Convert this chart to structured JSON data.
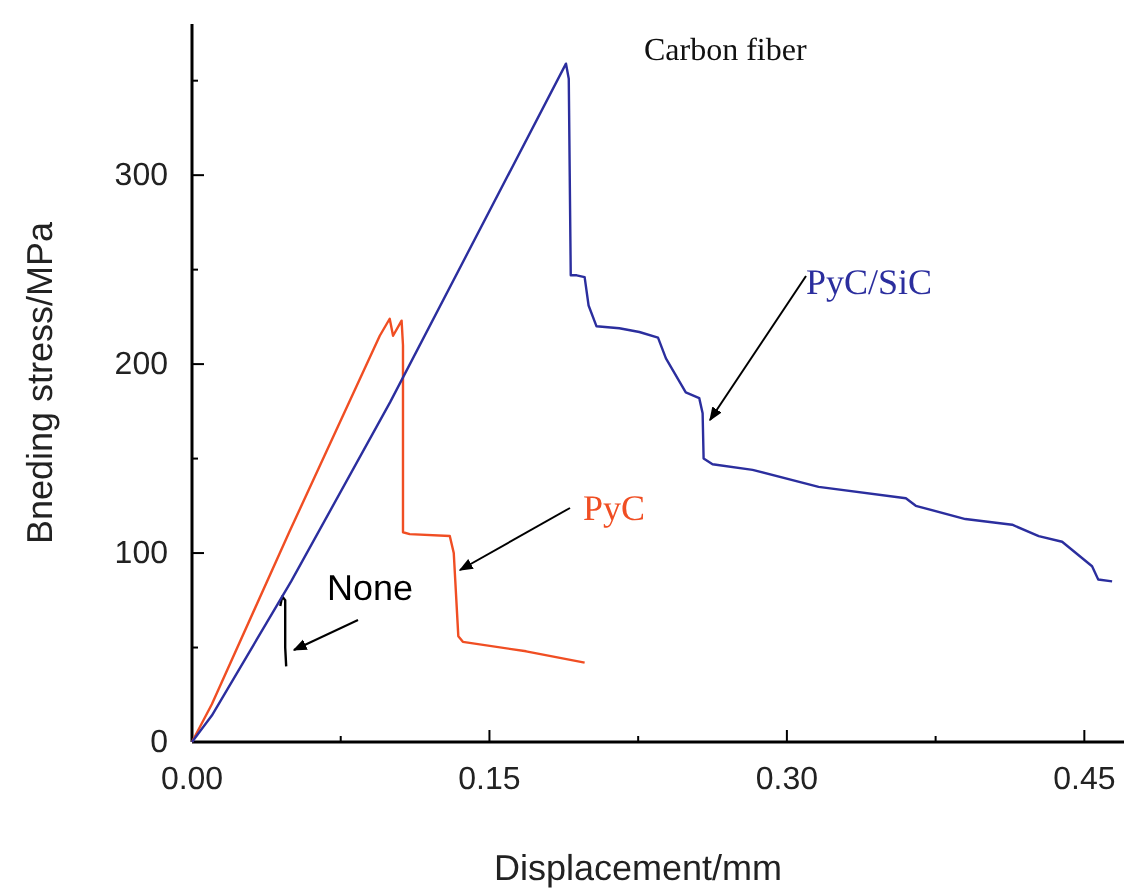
{
  "chart_data": {
    "type": "line",
    "xlabel": "Displacement/mm",
    "ylabel": "Bneding stress/MPa",
    "annotations": [
      "Carbon fiber"
    ],
    "xlim": [
      0,
      0.47
    ],
    "ylim": [
      0,
      380
    ],
    "xticks": [
      {
        "value": 0,
        "label": "0.00"
      },
      {
        "value": 0.075,
        "label": null
      },
      {
        "value": 0.15,
        "label": "0.15"
      },
      {
        "value": 0.225,
        "label": null
      },
      {
        "value": 0.3,
        "label": "0.30"
      },
      {
        "value": 0.375,
        "label": null
      },
      {
        "value": 0.45,
        "label": "0.45"
      }
    ],
    "yticks": [
      0,
      {
        "value": 50,
        "label": null
      },
      100,
      {
        "value": 150,
        "label": null
      },
      200,
      {
        "value": 250,
        "label": null
      },
      300,
      {
        "value": 350,
        "label": null
      }
    ],
    "grid": false,
    "legend": false,
    "marker": "none",
    "line_style": "solid",
    "series": [
      {
        "name": "None",
        "color": "#000000",
        "x": [
          0.0445,
          0.0455,
          0.047,
          0.047,
          0.0475
        ],
        "values": [
          72,
          77,
          75,
          50,
          40
        ]
      },
      {
        "name": "PyC",
        "color": "#f04e23",
        "x": [
          0,
          0.01,
          0.049,
          0.0947,
          0.0997,
          0.1014,
          0.1057,
          0.1064,
          0.1064,
          0.1098,
          0.13,
          0.132,
          0.1343,
          0.1366,
          0.1685,
          0.198
        ],
        "values": [
          0,
          20,
          111,
          215,
          224,
          215,
          223,
          210,
          111,
          110,
          109,
          100,
          56,
          53,
          48,
          42
        ]
      },
      {
        "name": "PyC/SiC",
        "color": "#2b2e9e",
        "x": [
          0,
          0.01,
          0.05,
          0.1,
          0.1886,
          0.19,
          0.191,
          0.194,
          0.198,
          0.2,
          0.204,
          0.2155,
          0.2256,
          0.235,
          0.239,
          0.249,
          0.2558,
          0.2575,
          0.258,
          0.2625,
          0.2827,
          0.316,
          0.36,
          0.365,
          0.39,
          0.4136,
          0.427,
          0.4388,
          0.4539,
          0.457,
          0.464
        ],
        "values": [
          0,
          14,
          85,
          180,
          359,
          351,
          247,
          247,
          246,
          231,
          220,
          219,
          217,
          214,
          203,
          185,
          182,
          174,
          150,
          147,
          144,
          135,
          129,
          125,
          118,
          115,
          109,
          106,
          93,
          86,
          85
        ]
      }
    ]
  }
}
